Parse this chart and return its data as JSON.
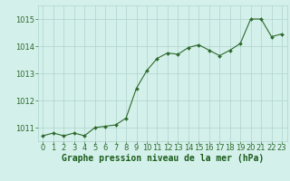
{
  "x": [
    0,
    1,
    2,
    3,
    4,
    5,
    6,
    7,
    8,
    9,
    10,
    11,
    12,
    13,
    14,
    15,
    16,
    17,
    18,
    19,
    20,
    21,
    22,
    23
  ],
  "y": [
    1010.7,
    1010.8,
    1010.7,
    1010.8,
    1010.7,
    1011.0,
    1011.05,
    1011.1,
    1011.35,
    1012.45,
    1013.1,
    1013.55,
    1013.75,
    1013.7,
    1013.95,
    1014.05,
    1013.85,
    1013.65,
    1013.85,
    1014.1,
    1015.0,
    1015.0,
    1014.35,
    1014.45
  ],
  "ylim": [
    1010.5,
    1015.5
  ],
  "xlim": [
    -0.5,
    23.5
  ],
  "yticks": [
    1011,
    1012,
    1013,
    1014,
    1015
  ],
  "xticks": [
    0,
    1,
    2,
    3,
    4,
    5,
    6,
    7,
    8,
    9,
    10,
    11,
    12,
    13,
    14,
    15,
    16,
    17,
    18,
    19,
    20,
    21,
    22,
    23
  ],
  "line_color": "#2d6a2d",
  "marker_color": "#2d6a2d",
  "bg_color": "#d4f0eb",
  "grid_color": "#aed4cc",
  "xlabel": "Graphe pression niveau de la mer (hPa)",
  "xlabel_color": "#1a5c1a",
  "tick_color": "#2d6a2d",
  "axis_label_size": 7.0,
  "tick_label_size": 6.0
}
